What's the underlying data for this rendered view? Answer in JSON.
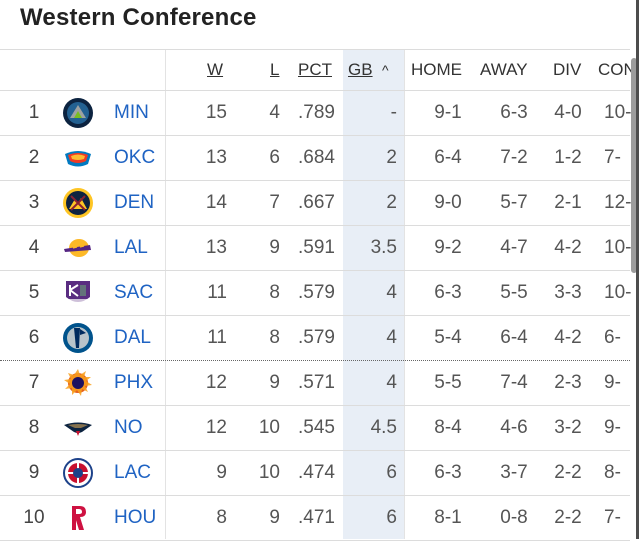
{
  "title": "Western Conference",
  "columns": {
    "w": "W",
    "l": "L",
    "pct": "PCT",
    "gb": "GB",
    "gb_sort_icon": "^",
    "home": "HOME",
    "away": "AWAY",
    "div": "DIV",
    "conf": "CON"
  },
  "rows": [
    {
      "rank": "1",
      "team": "MIN",
      "logo": "timberwolves-logo",
      "w": "15",
      "l": "4",
      "pct": ".789",
      "gb": "-",
      "home": "9-1",
      "away": "6-3",
      "div": "4-0",
      "conf": "10-"
    },
    {
      "rank": "2",
      "team": "OKC",
      "logo": "thunder-logo",
      "w": "13",
      "l": "6",
      "pct": ".684",
      "gb": "2",
      "home": "6-4",
      "away": "7-2",
      "div": "1-2",
      "conf": "7-"
    },
    {
      "rank": "3",
      "team": "DEN",
      "logo": "nuggets-logo",
      "w": "14",
      "l": "7",
      "pct": ".667",
      "gb": "2",
      "home": "9-0",
      "away": "5-7",
      "div": "2-1",
      "conf": "12-"
    },
    {
      "rank": "4",
      "team": "LAL",
      "logo": "lakers-logo",
      "w": "13",
      "l": "9",
      "pct": ".591",
      "gb": "3.5",
      "home": "9-2",
      "away": "4-7",
      "div": "4-2",
      "conf": "10-"
    },
    {
      "rank": "5",
      "team": "SAC",
      "logo": "kings-logo",
      "w": "11",
      "l": "8",
      "pct": ".579",
      "gb": "4",
      "home": "6-3",
      "away": "5-5",
      "div": "3-3",
      "conf": "10-"
    },
    {
      "rank": "6",
      "team": "DAL",
      "logo": "mavericks-logo",
      "w": "11",
      "l": "8",
      "pct": ".579",
      "gb": "4",
      "home": "5-4",
      "away": "6-4",
      "div": "4-2",
      "conf": "6-"
    },
    {
      "rank": "7",
      "team": "PHX",
      "logo": "suns-logo",
      "w": "12",
      "l": "9",
      "pct": ".571",
      "gb": "4",
      "home": "5-5",
      "away": "7-4",
      "div": "2-3",
      "conf": "9-"
    },
    {
      "rank": "8",
      "team": "NO",
      "logo": "pelicans-logo",
      "w": "12",
      "l": "10",
      "pct": ".545",
      "gb": "4.5",
      "home": "8-4",
      "away": "4-6",
      "div": "3-2",
      "conf": "9-"
    },
    {
      "rank": "9",
      "team": "LAC",
      "logo": "clippers-logo",
      "w": "9",
      "l": "10",
      "pct": ".474",
      "gb": "6",
      "home": "6-3",
      "away": "3-7",
      "div": "2-2",
      "conf": "8-"
    },
    {
      "rank": "10",
      "team": "HOU",
      "logo": "rockets-logo",
      "w": "8",
      "l": "9",
      "pct": ".471",
      "gb": "6",
      "home": "8-1",
      "away": "0-8",
      "div": "2-2",
      "conf": "7-"
    }
  ],
  "cutoff_after_rank": "6",
  "colors": {
    "link": "#1f63c3",
    "gb_highlight": "#e8eef6",
    "divider": "#dcdcdc"
  }
}
